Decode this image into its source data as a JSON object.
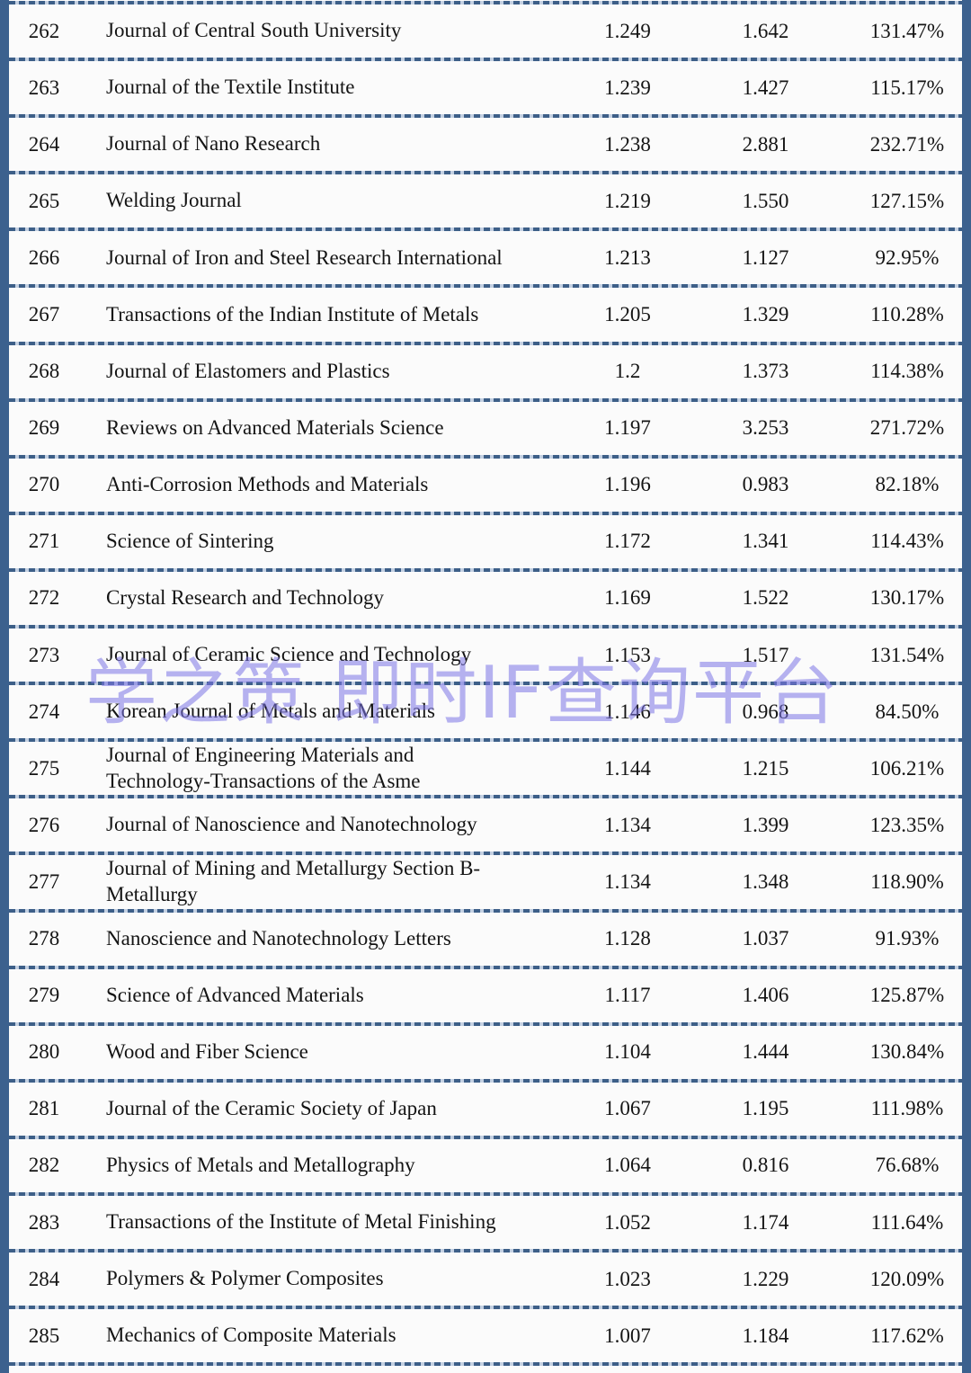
{
  "colors": {
    "border": "#3c618e",
    "dash_dark": "#3d5f88",
    "dash_light": "#c3d0e2",
    "text": "#141414",
    "background": "#fbfbfb",
    "watermark": "#7d76e6"
  },
  "watermark": {
    "text": "学之策 即时IF查询平台"
  },
  "table": {
    "rows": [
      {
        "rank": "262",
        "name": "Journal of Central South University",
        "v1": "1.249",
        "v2": "1.642",
        "pct": "131.47%"
      },
      {
        "rank": "263",
        "name": "Journal of the Textile Institute",
        "v1": "1.239",
        "v2": "1.427",
        "pct": "115.17%"
      },
      {
        "rank": "264",
        "name": "Journal of Nano Research",
        "v1": "1.238",
        "v2": "2.881",
        "pct": "232.71%"
      },
      {
        "rank": "265",
        "name": "Welding Journal",
        "v1": "1.219",
        "v2": "1.550",
        "pct": "127.15%"
      },
      {
        "rank": "266",
        "name": "Journal of Iron and Steel Research International",
        "v1": "1.213",
        "v2": "1.127",
        "pct": "92.95%"
      },
      {
        "rank": "267",
        "name": "Transactions of the Indian Institute of Metals",
        "v1": "1.205",
        "v2": "1.329",
        "pct": "110.28%"
      },
      {
        "rank": "268",
        "name": "Journal of Elastomers and Plastics",
        "v1": "1.2",
        "v2": "1.373",
        "pct": "114.38%"
      },
      {
        "rank": "269",
        "name": "Reviews on Advanced Materials Science",
        "v1": "1.197",
        "v2": "3.253",
        "pct": "271.72%"
      },
      {
        "rank": "270",
        "name": "Anti-Corrosion Methods and Materials",
        "v1": "1.196",
        "v2": "0.983",
        "pct": "82.18%"
      },
      {
        "rank": "271",
        "name": "Science of Sintering",
        "v1": "1.172",
        "v2": "1.341",
        "pct": "114.43%"
      },
      {
        "rank": "272",
        "name": "Crystal Research and Technology",
        "v1": "1.169",
        "v2": "1.522",
        "pct": "130.17%"
      },
      {
        "rank": "273",
        "name": "Journal of Ceramic Science and Technology",
        "v1": "1.153",
        "v2": "1.517",
        "pct": "131.54%"
      },
      {
        "rank": "274",
        "name": "Korean Journal of Metals and Materials",
        "v1": "1.146",
        "v2": "0.968",
        "pct": "84.50%"
      },
      {
        "rank": "275",
        "name": "Journal of Engineering Materials and\nTechnology-Transactions of the Asme",
        "v1": "1.144",
        "v2": "1.215",
        "pct": "106.21%"
      },
      {
        "rank": "276",
        "name": "Journal of Nanoscience and Nanotechnology",
        "v1": "1.134",
        "v2": "1.399",
        "pct": "123.35%"
      },
      {
        "rank": "277",
        "name": "Journal of Mining and Metallurgy Section B-\nMetallurgy",
        "v1": "1.134",
        "v2": "1.348",
        "pct": "118.90%"
      },
      {
        "rank": "278",
        "name": "Nanoscience and Nanotechnology Letters",
        "v1": "1.128",
        "v2": "1.037",
        "pct": "91.93%"
      },
      {
        "rank": "279",
        "name": "Science of Advanced Materials",
        "v1": "1.117",
        "v2": "1.406",
        "pct": "125.87%"
      },
      {
        "rank": "280",
        "name": "Wood and Fiber Science",
        "v1": "1.104",
        "v2": "1.444",
        "pct": "130.84%"
      },
      {
        "rank": "281",
        "name": "Journal of the Ceramic Society of Japan",
        "v1": "1.067",
        "v2": "1.195",
        "pct": "111.98%"
      },
      {
        "rank": "282",
        "name": "Physics of Metals and Metallography",
        "v1": "1.064",
        "v2": "0.816",
        "pct": "76.68%"
      },
      {
        "rank": "283",
        "name": "Transactions of the Institute of Metal Finishing",
        "v1": "1.052",
        "v2": "1.174",
        "pct": "111.64%"
      },
      {
        "rank": "284",
        "name": "Polymers & Polymer Composites",
        "v1": "1.023",
        "v2": "1.229",
        "pct": "120.09%"
      },
      {
        "rank": "285",
        "name": "Mechanics of Composite Materials",
        "v1": "1.007",
        "v2": "1.184",
        "pct": "117.62%"
      }
    ]
  }
}
